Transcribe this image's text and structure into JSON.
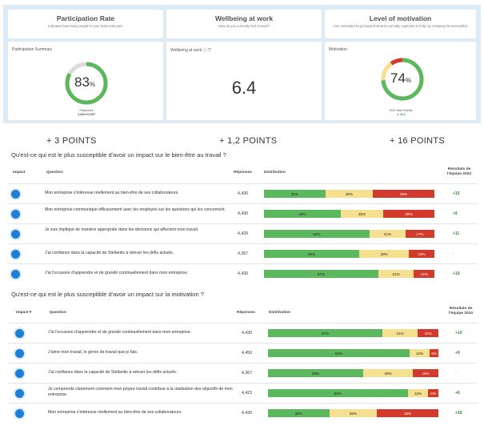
{
  "headers": [
    {
      "title": "Participation Rate",
      "subtitle": "Indicates how many people in your team took part."
    },
    {
      "title": "Wellbeing at work",
      "subtitle": "How do you currently feel at work?"
    },
    {
      "title": "Level of motivation",
      "subtitle": "I am motivated to go beyond what is normally expected to help my company be successful."
    }
  ],
  "participation": {
    "label": "Participation Summary",
    "value": "83",
    "unit": "%",
    "fill_pct": 83,
    "resp_label": "Responses",
    "resp_count": "4,436 of 5,357"
  },
  "wellbeing": {
    "label": "Wellbeing at work",
    "value": "6.4"
  },
  "motivation": {
    "label": "Motivation",
    "value": "74",
    "unit": "%",
    "fill_pct": 74,
    "delta_label": "2024 Team Results",
    "delta": "▲ 11.4"
  },
  "points": [
    "+ 3 POINTS",
    "+ 1,2 POINTS",
    "+ 16 POINTS"
  ],
  "colors": {
    "green": "#5cb85c",
    "yellow": "#f6df8e",
    "red": "#d23b2b",
    "blue": "#1e7fd6"
  },
  "sections": [
    {
      "question": "Qu'est-ce qui est le plus susceptible d'avoir un impact sur le bien-être au travail ?",
      "headers": {
        "impact": "Impact",
        "question": "Question",
        "responses": "Réponses",
        "distribution": "Distribution",
        "results": "Résultats de l'équipe 2024"
      },
      "rows": [
        {
          "text": "Mon entreprise s'intéresse réellement au bien-être de ses collaborateurs.",
          "responses": "4,430",
          "g": 36,
          "y": 28,
          "r": 36,
          "score": "+15"
        },
        {
          "text": "Mon entreprise communique efficacement avec les employés sur les questions qui les concernent.",
          "responses": "4,430",
          "g": 45,
          "y": 25,
          "r": 30,
          "score": "+9"
        },
        {
          "text": "Je suis impliqué de manière appropriée dans les décisions qui affectent mon travail.",
          "responses": "4,429",
          "g": 62,
          "y": 21,
          "r": 17,
          "score": "+11"
        },
        {
          "text": "J'ai confiance dans la capacité de Stellantis à relever les défis actuels.",
          "responses": "4,367",
          "g": 56,
          "y": 29,
          "r": 15,
          "score": "-"
        },
        {
          "text": "J'ai l'occasion d'apprendre et de grandir continuellement dans mon entreprise.",
          "responses": "4,430",
          "g": 67,
          "y": 21,
          "r": 12,
          "score": "+10"
        }
      ]
    },
    {
      "question": "Qu'est-ce qui est le plus susceptible d'avoir un impact sur la motivation ?",
      "headers": {
        "impact": "Impact ▾",
        "question": "Question",
        "responses": "Réponses",
        "distribution": "Distribution",
        "results": "Résultats de l'équipe 2024"
      },
      "rows": [
        {
          "text": "J'ai l'occasion d'apprendre et de grandir continuellement dans mon entreprise.",
          "responses": "4,430",
          "g": 67,
          "y": 21,
          "r": 12,
          "score": "+10"
        },
        {
          "text": "J'aime mon travail, le genre de travail que je fais.",
          "responses": "4,450",
          "g": 83,
          "y": 12,
          "r": 5,
          "score": "+9"
        },
        {
          "text": "J'ai confiance dans la capacité de Stellantis à relever les défis actuels.",
          "responses": "4,367",
          "g": 56,
          "y": 29,
          "r": 15,
          "score": "-"
        },
        {
          "text": "Je comprends clairement comment mon propre travail contribue à la réalisation des objectifs de mon entreprise.",
          "responses": "4,423",
          "g": 82,
          "y": 12,
          "r": 6,
          "score": "+6"
        },
        {
          "text": "Mon entreprise s'intéresse réellement au bien-être de ses collaborateurs.",
          "responses": "4,430",
          "g": 36,
          "y": 28,
          "r": 36,
          "score": "+15"
        }
      ]
    }
  ]
}
